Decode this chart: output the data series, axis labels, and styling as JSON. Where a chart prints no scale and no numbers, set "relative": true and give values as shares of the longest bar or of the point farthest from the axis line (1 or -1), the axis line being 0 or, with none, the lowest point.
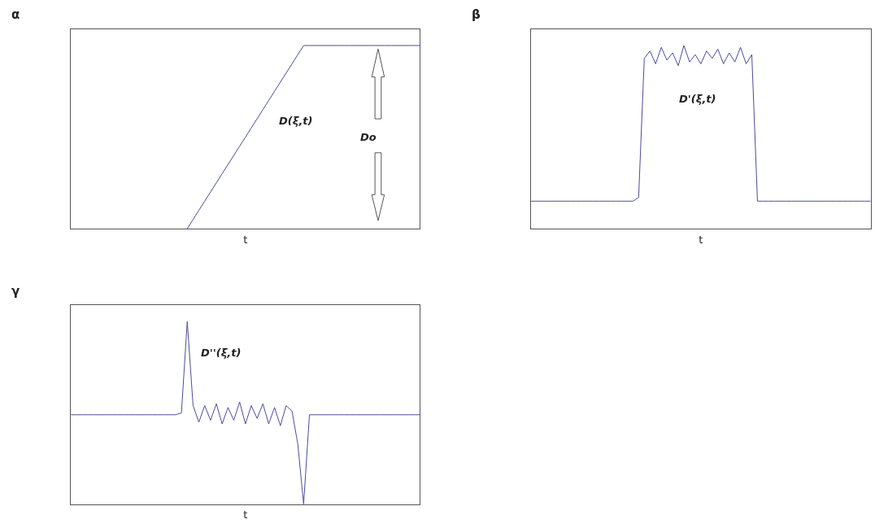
{
  "chart_data": [
    {
      "type": "line",
      "title": "α",
      "xlabel": "t",
      "relative": true,
      "tick_labels": false,
      "color": "#4b4b9c",
      "annotations": [
        "D(ξ,t)",
        "Do"
      ],
      "categories": [
        null,
        null,
        null,
        null,
        null,
        null,
        null,
        null,
        null,
        null,
        null,
        null,
        null,
        null,
        null,
        null,
        null,
        null,
        null,
        null,
        null,
        null,
        null,
        null,
        null,
        null,
        null,
        null,
        null,
        null,
        null,
        null,
        null,
        null,
        null,
        null,
        null,
        null,
        null,
        null,
        null,
        null,
        null,
        null,
        null,
        null,
        null,
        null,
        null,
        null,
        null,
        null,
        null,
        null,
        null,
        null,
        null,
        null,
        null,
        null,
        null
      ],
      "values": [
        null,
        null,
        null,
        null,
        null,
        null,
        null,
        null,
        null,
        null,
        null,
        null,
        null,
        null,
        null,
        null,
        null,
        null,
        null,
        null,
        0,
        0.05,
        0.1,
        0.15,
        0.2,
        0.25,
        0.3,
        0.35,
        0.4,
        0.45,
        0.5,
        0.55,
        0.6,
        0.65,
        0.7,
        0.75,
        0.8,
        0.85,
        0.9,
        0.95,
        1,
        1,
        1,
        1,
        1,
        1,
        1,
        1,
        1,
        1,
        1,
        1,
        1,
        1,
        1,
        1,
        1,
        1,
        1,
        1,
        1
      ]
    },
    {
      "type": "line",
      "title": "β",
      "xlabel": "t",
      "relative": true,
      "tick_labels": false,
      "color": "#4b4b9c",
      "annotations": [
        "D'(ξ,t)"
      ],
      "categories": [
        null,
        null,
        null,
        null,
        null,
        null,
        null,
        null,
        null,
        null,
        null,
        null,
        null,
        null,
        null,
        null,
        null,
        null,
        null,
        null,
        null,
        null,
        null,
        null,
        null,
        null,
        null,
        null,
        null,
        null,
        null,
        null,
        null,
        null,
        null,
        null,
        null,
        null,
        null,
        null,
        null,
        null,
        null,
        null,
        null,
        null,
        null,
        null,
        null,
        null,
        null,
        null,
        null,
        null,
        null,
        null,
        null,
        null,
        null,
        null,
        null
      ],
      "values": [
        0.15,
        0.15,
        0.15,
        0.15,
        0.15,
        0.15,
        0.15,
        0.15,
        0.15,
        0.15,
        0.15,
        0.15,
        0.15,
        0.15,
        0.15,
        0.15,
        0.15,
        0.15,
        0.15,
        0.17,
        0.93,
        0.97,
        0.9,
        0.99,
        0.92,
        0.96,
        0.89,
        1,
        0.91,
        0.95,
        0.9,
        0.97,
        0.93,
        0.98,
        0.9,
        0.96,
        0.91,
        0.99,
        0.9,
        0.95,
        0.15,
        0.15,
        0.15,
        0.15,
        0.15,
        0.15,
        0.15,
        0.15,
        0.15,
        0.15,
        0.15,
        0.15,
        0.15,
        0.15,
        0.15,
        0.15,
        0.15,
        0.15,
        0.15,
        0.15,
        0.15
      ]
    },
    {
      "type": "line",
      "title": "γ",
      "xlabel": "t",
      "relative": true,
      "tick_labels": false,
      "color": "#4b4b9c",
      "annotations": [
        "D''(ξ,t)"
      ],
      "categories": [
        null,
        null,
        null,
        null,
        null,
        null,
        null,
        null,
        null,
        null,
        null,
        null,
        null,
        null,
        null,
        null,
        null,
        null,
        null,
        null,
        null,
        null,
        null,
        null,
        null,
        null,
        null,
        null,
        null,
        null,
        null,
        null,
        null,
        null,
        null,
        null,
        null,
        null,
        null,
        null,
        null,
        null,
        null,
        null,
        null,
        null,
        null,
        null,
        null,
        null,
        null,
        null,
        null,
        null,
        null,
        null,
        null,
        null,
        null,
        null,
        null
      ],
      "values": [
        0.49,
        0.49,
        0.49,
        0.49,
        0.49,
        0.49,
        0.49,
        0.49,
        0.49,
        0.49,
        0.49,
        0.49,
        0.49,
        0.49,
        0.49,
        0.49,
        0.49,
        0.49,
        0.49,
        0.5,
        1,
        0.54,
        0.45,
        0.54,
        0.46,
        0.55,
        0.44,
        0.53,
        0.46,
        0.56,
        0.44,
        0.54,
        0.47,
        0.55,
        0.44,
        0.53,
        0.43,
        0.54,
        0.51,
        0.33,
        0,
        0.49,
        0.49,
        0.49,
        0.49,
        0.49,
        0.49,
        0.49,
        0.49,
        0.49,
        0.49,
        0.49,
        0.49,
        0.49,
        0.49,
        0.49,
        0.49,
        0.49,
        0.49,
        0.49,
        0.49
      ]
    }
  ]
}
